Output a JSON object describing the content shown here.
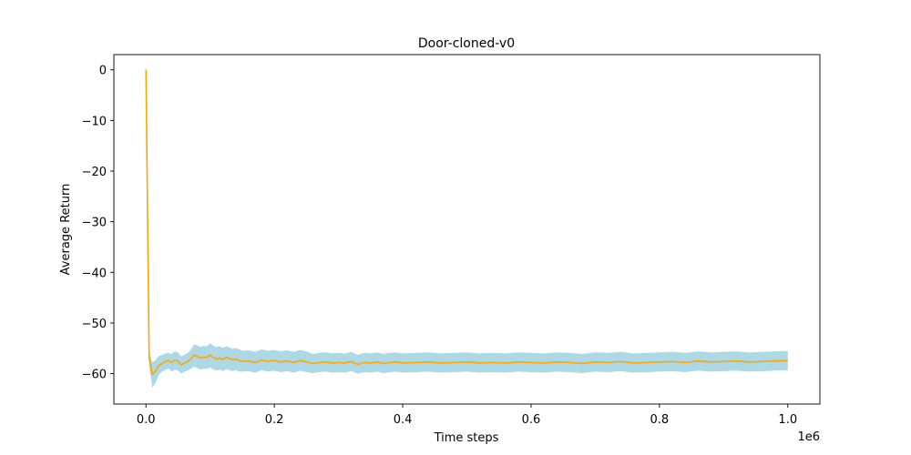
{
  "chart_data": {
    "type": "line",
    "title": "Door-cloned-v0",
    "xlabel": "Time steps",
    "ylabel": "Average Return",
    "x_offset_label": "1e6",
    "xlim": [
      -0.05,
      1.05
    ],
    "ylim": [
      -66,
      3
    ],
    "xticks": [
      0.0,
      0.2,
      0.4,
      0.6,
      0.8,
      1.0
    ],
    "xtick_labels": [
      "0.0",
      "0.2",
      "0.4",
      "0.6",
      "0.8",
      "1.0"
    ],
    "yticks": [
      0,
      -10,
      -20,
      -30,
      -40,
      -50,
      -60
    ],
    "ytick_labels": [
      "0",
      "−10",
      "−20",
      "−30",
      "−40",
      "−50",
      "−60"
    ],
    "grid": false,
    "legend": "none",
    "colors": {
      "line": "#ffa500",
      "band": "#add8e6"
    },
    "series": [
      {
        "x": [
          0.0,
          0.005,
          0.01,
          0.015,
          0.02,
          0.025,
          0.03,
          0.035,
          0.04,
          0.045,
          0.05,
          0.055,
          0.06,
          0.065,
          0.07,
          0.075,
          0.08,
          0.085,
          0.09,
          0.095,
          0.1,
          0.105,
          0.11,
          0.115,
          0.12,
          0.125,
          0.13,
          0.135,
          0.14,
          0.145,
          0.15,
          0.16,
          0.17,
          0.18,
          0.19,
          0.2,
          0.21,
          0.22,
          0.23,
          0.24,
          0.25,
          0.26,
          0.27,
          0.28,
          0.29,
          0.3,
          0.31,
          0.32,
          0.33,
          0.34,
          0.35,
          0.36,
          0.37,
          0.38,
          0.39,
          0.4,
          0.42,
          0.44,
          0.46,
          0.48,
          0.5,
          0.52,
          0.54,
          0.56,
          0.58,
          0.6,
          0.62,
          0.64,
          0.66,
          0.68,
          0.7,
          0.72,
          0.74,
          0.76,
          0.78,
          0.8,
          0.82,
          0.84,
          0.86,
          0.88,
          0.9,
          0.92,
          0.94,
          0.96,
          0.98,
          1.0
        ],
        "y": [
          0.0,
          -57.0,
          -60.2,
          -59.5,
          -58.4,
          -58.0,
          -57.6,
          -57.4,
          -57.8,
          -57.3,
          -57.5,
          -58.3,
          -57.9,
          -57.6,
          -57.1,
          -56.3,
          -56.6,
          -56.9,
          -56.7,
          -56.8,
          -56.3,
          -56.8,
          -57.1,
          -56.9,
          -57.2,
          -56.8,
          -57.0,
          -57.3,
          -57.1,
          -57.4,
          -57.6,
          -57.5,
          -57.8,
          -57.3,
          -57.6,
          -57.4,
          -57.7,
          -57.5,
          -57.8,
          -57.4,
          -57.7,
          -58.0,
          -57.8,
          -57.7,
          -57.9,
          -57.8,
          -57.9,
          -57.6,
          -58.2,
          -57.8,
          -57.9,
          -57.7,
          -58.0,
          -57.8,
          -57.7,
          -57.9,
          -57.8,
          -57.7,
          -57.9,
          -57.8,
          -57.7,
          -57.9,
          -57.8,
          -57.9,
          -57.7,
          -57.8,
          -57.9,
          -57.7,
          -57.8,
          -58.0,
          -57.7,
          -57.8,
          -57.6,
          -57.9,
          -57.8,
          -57.7,
          -57.6,
          -57.8,
          -57.5,
          -57.7,
          -57.6,
          -57.5,
          -57.7,
          -57.6,
          -57.5,
          -57.4
        ],
        "lower": [
          0.0,
          -58.5,
          -62.8,
          -61.8,
          -60.2,
          -59.6,
          -59.3,
          -59.0,
          -59.6,
          -59.2,
          -59.4,
          -60.0,
          -59.6,
          -59.4,
          -59.0,
          -58.6,
          -58.9,
          -59.2,
          -59.0,
          -59.1,
          -58.8,
          -59.2,
          -59.4,
          -59.2,
          -59.5,
          -59.1,
          -59.3,
          -59.5,
          -59.3,
          -59.6,
          -59.6,
          -59.5,
          -59.8,
          -59.3,
          -59.6,
          -59.4,
          -59.7,
          -59.5,
          -59.8,
          -59.4,
          -59.7,
          -59.9,
          -59.7,
          -59.6,
          -59.8,
          -59.7,
          -59.8,
          -59.5,
          -60.0,
          -59.7,
          -59.8,
          -59.6,
          -59.9,
          -59.7,
          -59.6,
          -59.8,
          -59.7,
          -59.6,
          -59.8,
          -59.7,
          -59.6,
          -59.8,
          -59.7,
          -59.8,
          -59.6,
          -59.7,
          -59.8,
          -59.6,
          -59.7,
          -59.9,
          -59.6,
          -59.7,
          -59.5,
          -59.8,
          -59.7,
          -59.6,
          -59.5,
          -59.7,
          -59.4,
          -59.6,
          -59.5,
          -59.4,
          -59.6,
          -59.5,
          -59.4,
          -59.3
        ],
        "upper": [
          0.0,
          -55.6,
          -57.8,
          -57.3,
          -56.5,
          -56.3,
          -56.0,
          -55.9,
          -56.1,
          -55.6,
          -55.8,
          -56.6,
          -56.2,
          -55.9,
          -55.2,
          -54.2,
          -54.4,
          -54.7,
          -54.5,
          -54.6,
          -54.0,
          -54.5,
          -54.8,
          -54.6,
          -54.9,
          -54.6,
          -54.8,
          -55.1,
          -54.9,
          -55.2,
          -55.5,
          -55.4,
          -55.7,
          -55.2,
          -55.5,
          -55.3,
          -55.6,
          -55.4,
          -55.7,
          -55.3,
          -55.6,
          -56.1,
          -55.9,
          -55.8,
          -56.0,
          -55.9,
          -56.0,
          -55.7,
          -56.3,
          -55.9,
          -56.0,
          -55.8,
          -56.1,
          -55.9,
          -55.8,
          -56.0,
          -55.9,
          -55.8,
          -56.0,
          -55.9,
          -55.8,
          -56.0,
          -55.9,
          -56.0,
          -55.8,
          -55.9,
          -56.0,
          -55.8,
          -55.9,
          -56.1,
          -55.8,
          -55.9,
          -55.7,
          -56.0,
          -55.9,
          -55.8,
          -55.7,
          -55.9,
          -55.6,
          -55.8,
          -55.7,
          -55.6,
          -55.8,
          -55.7,
          -55.6,
          -55.5
        ]
      }
    ]
  }
}
